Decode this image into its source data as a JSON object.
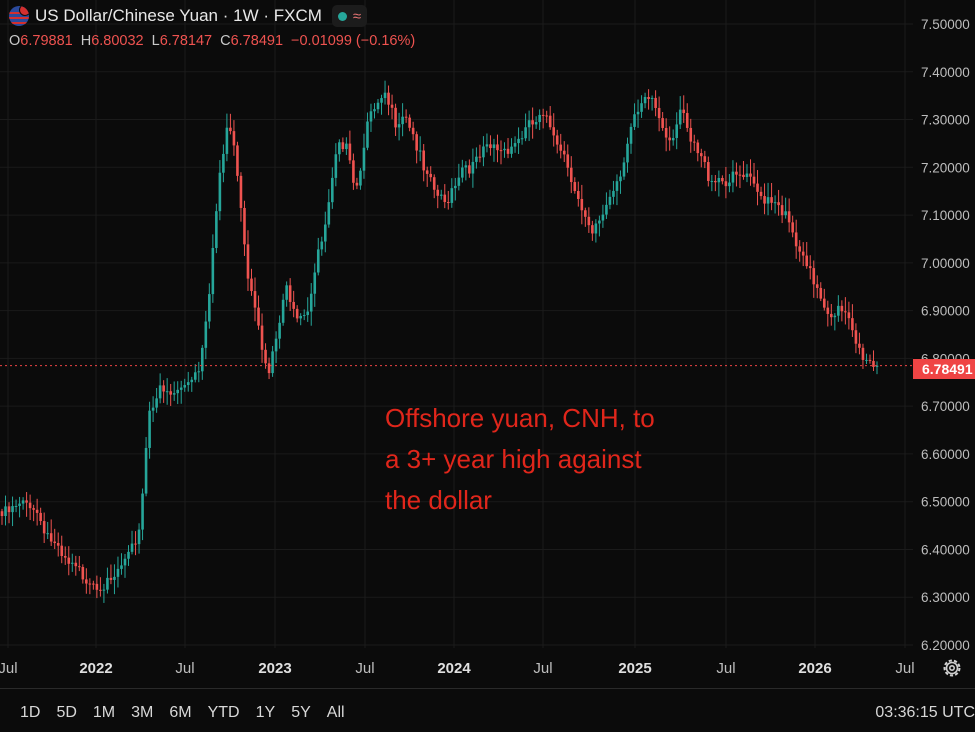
{
  "header": {
    "title": "US Dollar/Chinese Yuan · 1W · FXCM",
    "wave_symbol": "≈",
    "ohlc": [
      {
        "label": "O",
        "value": "6.79881"
      },
      {
        "label": "H",
        "value": "6.80032"
      },
      {
        "label": "L",
        "value": "6.78147"
      },
      {
        "label": "C",
        "value": "6.78491"
      }
    ],
    "change": "−0.01099 (−0.16%)"
  },
  "price_tag": "6.78491",
  "annotation": {
    "lines": [
      "Offshore yuan, CNH, to",
      "a 3+ year high against",
      "the dollar"
    ]
  },
  "ranges": [
    "1D",
    "5D",
    "1M",
    "3M",
    "6M",
    "YTD",
    "1Y",
    "5Y",
    "All"
  ],
  "clock": "03:36:15 UTC",
  "colors": {
    "up": "#26a69a",
    "down": "#ef5350",
    "annotation": "#e0261b",
    "background": "#0b0b0b"
  },
  "chart_data": {
    "type": "candlestick",
    "interval": "1W",
    "ylim": [
      6.2,
      7.5
    ],
    "y_ticks": [
      "6.20000",
      "6.30000",
      "6.40000",
      "6.50000",
      "6.60000",
      "6.70000",
      "6.80000",
      "6.90000",
      "7.00000",
      "7.10000",
      "7.20000",
      "7.30000",
      "7.40000",
      "7.50000"
    ],
    "x_ticks": [
      "Jul",
      "2022",
      "Jul",
      "2023",
      "Jul",
      "2024",
      "Jul",
      "2025",
      "Jul",
      "2026",
      "Jul"
    ],
    "last_close": 6.78491,
    "grid": true,
    "close_path": [
      6.47,
      6.48,
      6.49,
      6.5,
      6.46,
      6.42,
      6.38,
      6.36,
      6.35,
      6.34,
      6.33,
      6.32,
      6.36,
      6.38,
      6.45,
      6.7,
      6.73,
      6.72,
      6.73,
      6.76,
      6.78,
      6.93,
      7.15,
      7.3,
      7.19,
      6.98,
      6.9,
      6.75,
      6.85,
      6.95,
      6.9,
      6.9,
      7.0,
      7.08,
      7.22,
      7.27,
      7.15,
      7.28,
      7.32,
      7.34,
      7.3,
      7.32,
      7.26,
      7.18,
      7.15,
      7.12,
      7.17,
      7.21,
      7.2,
      7.23,
      7.24,
      7.24,
      7.25,
      7.27,
      7.29,
      7.3,
      7.28,
      7.24,
      7.18,
      7.1,
      7.05,
      7.1,
      7.15,
      7.2,
      7.28,
      7.32,
      7.35,
      7.3,
      7.26,
      7.32,
      7.25,
      7.22,
      7.18,
      7.18,
      7.17,
      7.18,
      7.17,
      7.14,
      7.14,
      7.13,
      7.08,
      7.02,
      6.98,
      6.95,
      6.9,
      6.9,
      6.88,
      6.82,
      6.8,
      6.78491
    ]
  }
}
